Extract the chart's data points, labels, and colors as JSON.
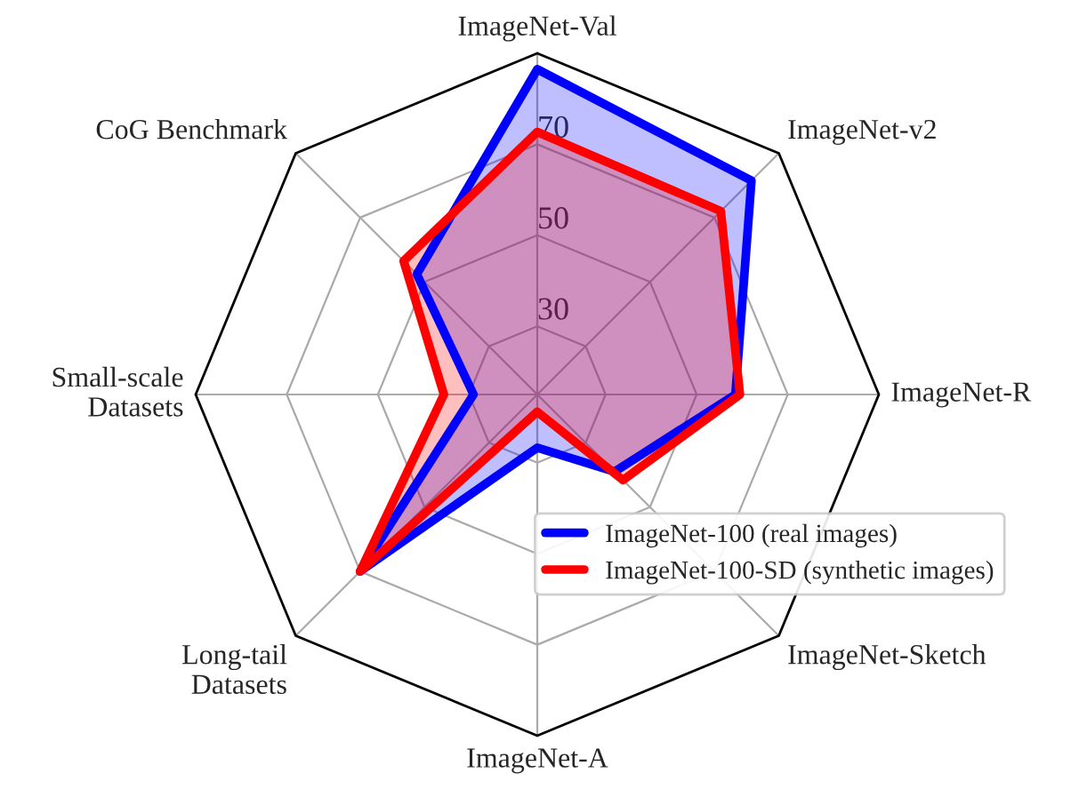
{
  "chart_data": {
    "type": "radar",
    "categories": [
      "ImageNet-Val",
      "ImageNet-v2",
      "ImageNet-R",
      "ImageNet-Sketch",
      "ImageNet-A",
      "Long-tail\nDatasets",
      "Small-scale\nDatasets",
      "CoG Benchmark"
    ],
    "series": [
      {
        "name": "ImageNet-100 (real images)",
        "color": "#0000ff",
        "values": [
          86.5,
          81.5,
          58.5,
          39,
          26.7,
          70,
          29,
          52.4
        ]
      },
      {
        "name": "ImageNet-100-SD (synthetic images)",
        "color": "#ff0000",
        "values": [
          72.7,
          72,
          59.5,
          41.6,
          18.8,
          70,
          35.5,
          56.5
        ]
      }
    ],
    "ylim": [
      15,
      90
    ],
    "yticks": [
      30,
      50,
      70
    ],
    "grid": true,
    "legend": "bottom right"
  }
}
